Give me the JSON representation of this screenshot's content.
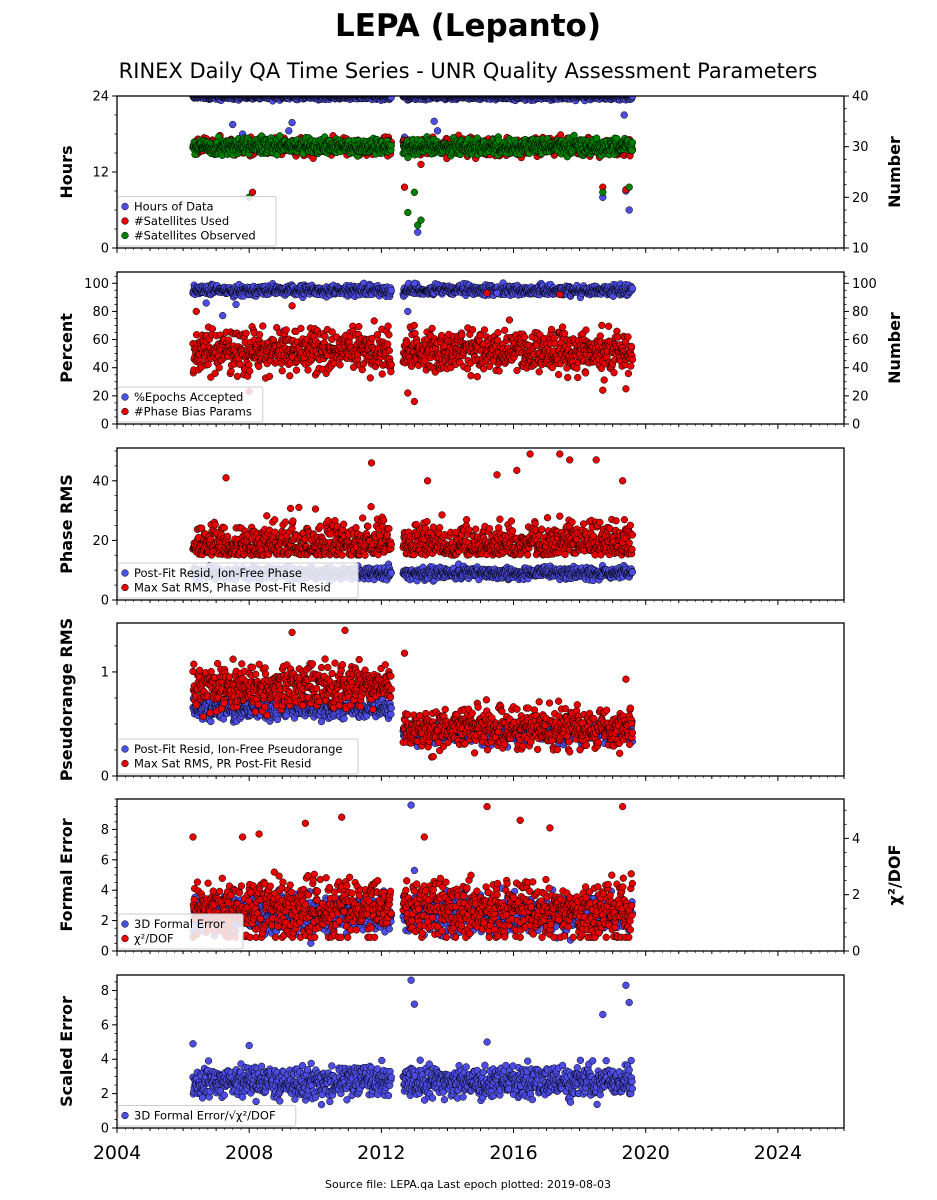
{
  "title": "LEPA (Lepanto)",
  "subtitle": "RINEX Daily QA Time Series - UNR Quality Assessment Parameters",
  "footer": "Source file: LEPA.qa Last epoch plotted: 2019-08-03",
  "colors": {
    "blue": "#4d4de6",
    "red": "#e60000",
    "green": "#008000"
  },
  "chart_data": [
    {
      "type": "scatter",
      "ylabel": "Hours",
      "ylabel_right": "Number",
      "xlim": [
        2004,
        2026
      ],
      "ylim": [
        0,
        24
      ],
      "ylim_right": [
        10,
        40
      ],
      "yticks": [
        0,
        12,
        24
      ],
      "yticks_right": [
        10,
        20,
        30,
        40
      ],
      "legend": "lower-left",
      "series": [
        {
          "name": "Hours of Data",
          "color": "blue",
          "axis": "left",
          "typical": 24,
          "spread": 0.25,
          "outliers": [
            [
              2007.5,
              19.5
            ],
            [
              2007.8,
              18.0
            ],
            [
              2009.2,
              18.5
            ],
            [
              2009.3,
              19.8
            ],
            [
              2012.7,
              17.5
            ],
            [
              2013.0,
              16.0
            ],
            [
              2013.1,
              2.5
            ],
            [
              2013.6,
              20.0
            ],
            [
              2013.7,
              18.5
            ],
            [
              2018.7,
              8.0
            ],
            [
              2019.35,
              21.0
            ],
            [
              2019.5,
              6.0
            ],
            [
              2019.4,
              9.0
            ]
          ]
        },
        {
          "name": "#Satellites Used",
          "color": "red",
          "axis": "right",
          "typical": 30,
          "spread": 0.8,
          "outliers": [
            [
              2008.1,
              21.0
            ],
            [
              2009.9,
              30.5
            ],
            [
              2012.7,
              22.0
            ],
            [
              2013.2,
              26.5
            ],
            [
              2018.7,
              22.0
            ],
            [
              2019.4,
              21.5
            ]
          ]
        },
        {
          "name": "#Satellites Observed",
          "color": "green",
          "axis": "right",
          "typical": 30,
          "spread": 0.8,
          "outliers": [
            [
              2008.0,
              20.0
            ],
            [
              2012.8,
              17.0
            ],
            [
              2013.0,
              21.0
            ],
            [
              2013.1,
              14.5
            ],
            [
              2013.2,
              15.5
            ],
            [
              2018.7,
              21.0
            ],
            [
              2019.5,
              22.0
            ]
          ]
        }
      ]
    },
    {
      "type": "scatter",
      "ylabel": "Percent",
      "ylabel_right": "Number",
      "xlim": [
        2004,
        2026
      ],
      "ylim": [
        0,
        108
      ],
      "ylim_right": [
        0,
        108
      ],
      "yticks": [
        0,
        20,
        40,
        60,
        80,
        100
      ],
      "yticks_right": [
        0,
        20,
        40,
        60,
        80,
        100
      ],
      "legend": "lower-left",
      "series": [
        {
          "name": "%Epochs Accepted",
          "color": "blue",
          "axis": "left",
          "typical": 95,
          "spread": 1.8,
          "outliers": [
            [
              2006.7,
              86.0
            ],
            [
              2007.2,
              77.0
            ],
            [
              2007.6,
              85.0
            ],
            [
              2012.8,
              80.0
            ],
            [
              2012.9,
              68.0
            ],
            [
              2013.0,
              100.0
            ],
            [
              2015.5,
              93.0
            ]
          ]
        },
        {
          "name": "#Phase Bias Params",
          "color": "red",
          "axis": "right",
          "typical": 52,
          "spread": 7.5,
          "outliers": [
            [
              2006.4,
              80.0
            ],
            [
              2008.0,
              23.0
            ],
            [
              2009.3,
              84.0
            ],
            [
              2012.8,
              22.0
            ],
            [
              2013.0,
              16.0
            ],
            [
              2015.2,
              93.0
            ],
            [
              2017.4,
              92.0
            ],
            [
              2018.7,
              24.0
            ],
            [
              2019.4,
              25.0
            ]
          ]
        }
      ]
    },
    {
      "type": "scatter",
      "ylabel": "Phase RMS",
      "xlim": [
        2004,
        2026
      ],
      "ylim": [
        0,
        51
      ],
      "yticks": [
        0,
        20,
        40
      ],
      "legend": "lower-left",
      "series": [
        {
          "name": "Post-Fit Resid, Ion-Free Phase",
          "color": "blue",
          "axis": "left",
          "typical": 9,
          "spread": 1.0,
          "outliers": []
        },
        {
          "name": "Max Sat RMS, Phase Post-Fit Resid",
          "color": "red",
          "axis": "left",
          "typical": 17,
          "spread": 6.0,
          "outliers": [
            [
              2007.3,
              41.0
            ],
            [
              2011.7,
              46.0
            ],
            [
              2013.4,
              40.0
            ],
            [
              2015.5,
              42.0
            ],
            [
              2016.1,
              43.5
            ],
            [
              2016.5,
              49.0
            ],
            [
              2017.4,
              49.0
            ],
            [
              2017.7,
              47.0
            ],
            [
              2018.5,
              47.0
            ],
            [
              2019.3,
              40.0
            ]
          ]
        }
      ]
    },
    {
      "type": "scatter",
      "ylabel": "Pseudorange RMS",
      "xlim": [
        2004,
        2026
      ],
      "ylim": [
        0,
        1.47
      ],
      "yticks": [
        0,
        1
      ],
      "legend": "lower-left",
      "series": [
        {
          "name": "Post-Fit Resid, Ion-Free Pseudorange",
          "color": "blue",
          "axis": "left",
          "typical_early": 0.65,
          "typical_late": 0.42,
          "spread": 0.05,
          "outliers": []
        },
        {
          "name": "Max Sat RMS, PR Post-Fit Resid",
          "color": "red",
          "axis": "left",
          "typical_early": 0.85,
          "typical_late": 0.46,
          "spread": 0.1,
          "outliers": [
            [
              2009.3,
              1.38
            ],
            [
              2010.9,
              1.4
            ],
            [
              2012.7,
              1.18
            ],
            [
              2019.4,
              0.93
            ]
          ]
        }
      ]
    },
    {
      "type": "scatter",
      "ylabel": "Formal Error",
      "ylabel_right": "χ²/DOF",
      "xlim": [
        2004,
        2026
      ],
      "ylim": [
        0,
        10
      ],
      "ylim_right": [
        0,
        5.4
      ],
      "yticks": [
        0,
        2,
        4,
        6,
        8
      ],
      "yticks_right": [
        0,
        2,
        4
      ],
      "legend": "lower-left",
      "series": [
        {
          "name": "3D Formal Error",
          "color": "blue",
          "axis": "left",
          "typical": 2.4,
          "spread": 0.6,
          "outliers": [
            [
              2012.9,
              9.6
            ],
            [
              2013.0,
              5.3
            ]
          ]
        },
        {
          "name": "χ²/DOF",
          "color": "red",
          "axis": "left",
          "typical": 2.7,
          "spread": 1.0,
          "outliers": [
            [
              2006.3,
              7.5
            ],
            [
              2007.8,
              7.5
            ],
            [
              2008.3,
              7.7
            ],
            [
              2009.7,
              8.4
            ],
            [
              2010.8,
              8.8
            ],
            [
              2013.3,
              7.5
            ],
            [
              2015.2,
              9.5
            ],
            [
              2016.2,
              8.6
            ],
            [
              2017.1,
              8.1
            ],
            [
              2019.3,
              9.5
            ]
          ]
        }
      ]
    },
    {
      "type": "scatter",
      "ylabel": "Scaled Error",
      "xlim": [
        2004,
        2026
      ],
      "ylim": [
        0,
        8.9
      ],
      "yticks": [
        0,
        2,
        4,
        6,
        8
      ],
      "legend": "lower-left",
      "series": [
        {
          "name": "3D Formal Error/√χ²/DOF",
          "color": "blue",
          "axis": "left",
          "typical": 2.7,
          "spread": 0.45,
          "outliers": [
            [
              2006.3,
              4.9
            ],
            [
              2008.0,
              4.8
            ],
            [
              2012.9,
              8.6
            ],
            [
              2013.0,
              7.2
            ],
            [
              2015.2,
              5.0
            ],
            [
              2018.7,
              6.6
            ],
            [
              2019.4,
              8.3
            ],
            [
              2019.5,
              7.3
            ]
          ]
        }
      ]
    }
  ],
  "x_axis": {
    "ticks": [
      2004,
      2008,
      2012,
      2016,
      2020,
      2024
    ],
    "data_range": [
      2006.3,
      2019.6
    ],
    "gap": [
      2012.3,
      2012.65
    ]
  }
}
